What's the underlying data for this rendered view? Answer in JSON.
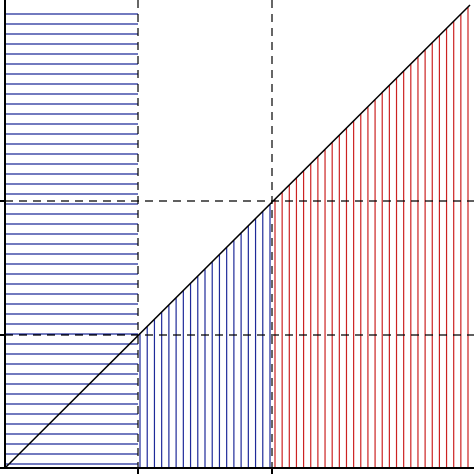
{
  "diagram": {
    "colors": {
      "background": "#ffffff",
      "axis": "#000000",
      "diagonal": "#000000",
      "dashed": "#000000",
      "blue": "#1f2a99",
      "red": "#cc2222"
    },
    "left_horizontal_hatch": {
      "color_key": "blue",
      "count": 46
    },
    "middle_vertical_hatch": {
      "color_key": "blue",
      "count": 19
    },
    "right_vertical_hatch": {
      "color_key": "red",
      "count": 28
    },
    "dashed_vertical_lines": 2,
    "dashed_horizontal_lines": 2
  }
}
